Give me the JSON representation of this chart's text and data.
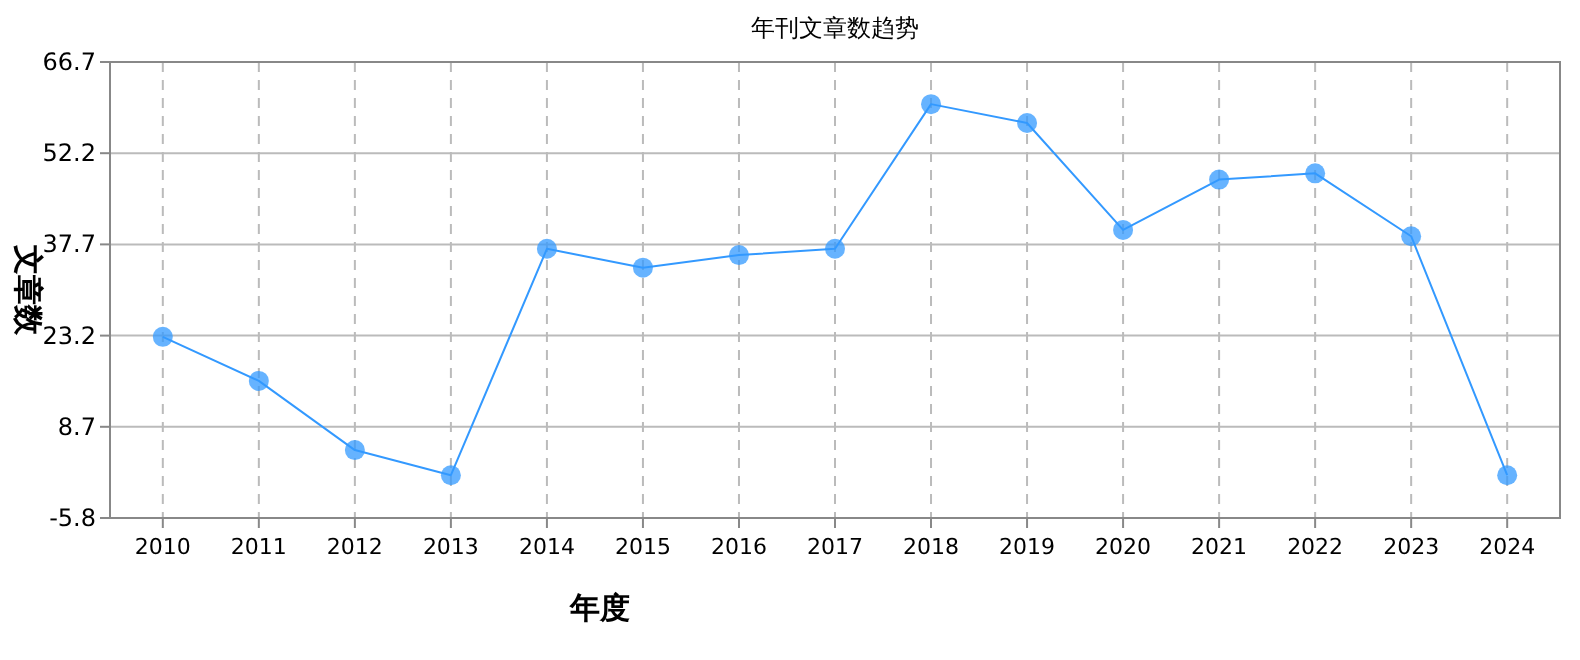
{
  "chart_data": {
    "type": "line",
    "title": "年刊文章数趋势",
    "xlabel": "年度",
    "ylabel": "文章数",
    "categories": [
      "2010",
      "2011",
      "2012",
      "2013",
      "2014",
      "2015",
      "2016",
      "2017",
      "2018",
      "2019",
      "2020",
      "2021",
      "2022",
      "2023",
      "2024"
    ],
    "series": [
      {
        "color": "#3399ff",
        "values": [
          23,
          16,
          5,
          1,
          37,
          34,
          36,
          37,
          60,
          57,
          40,
          48,
          49,
          39,
          1
        ]
      }
    ],
    "ylim": [
      -5.8,
      66.7
    ],
    "yticks": [
      -5.8,
      8.7,
      23.2,
      37.7,
      52.2,
      66.7
    ],
    "grid": true,
    "marker": "circle",
    "line_style": "solid"
  }
}
